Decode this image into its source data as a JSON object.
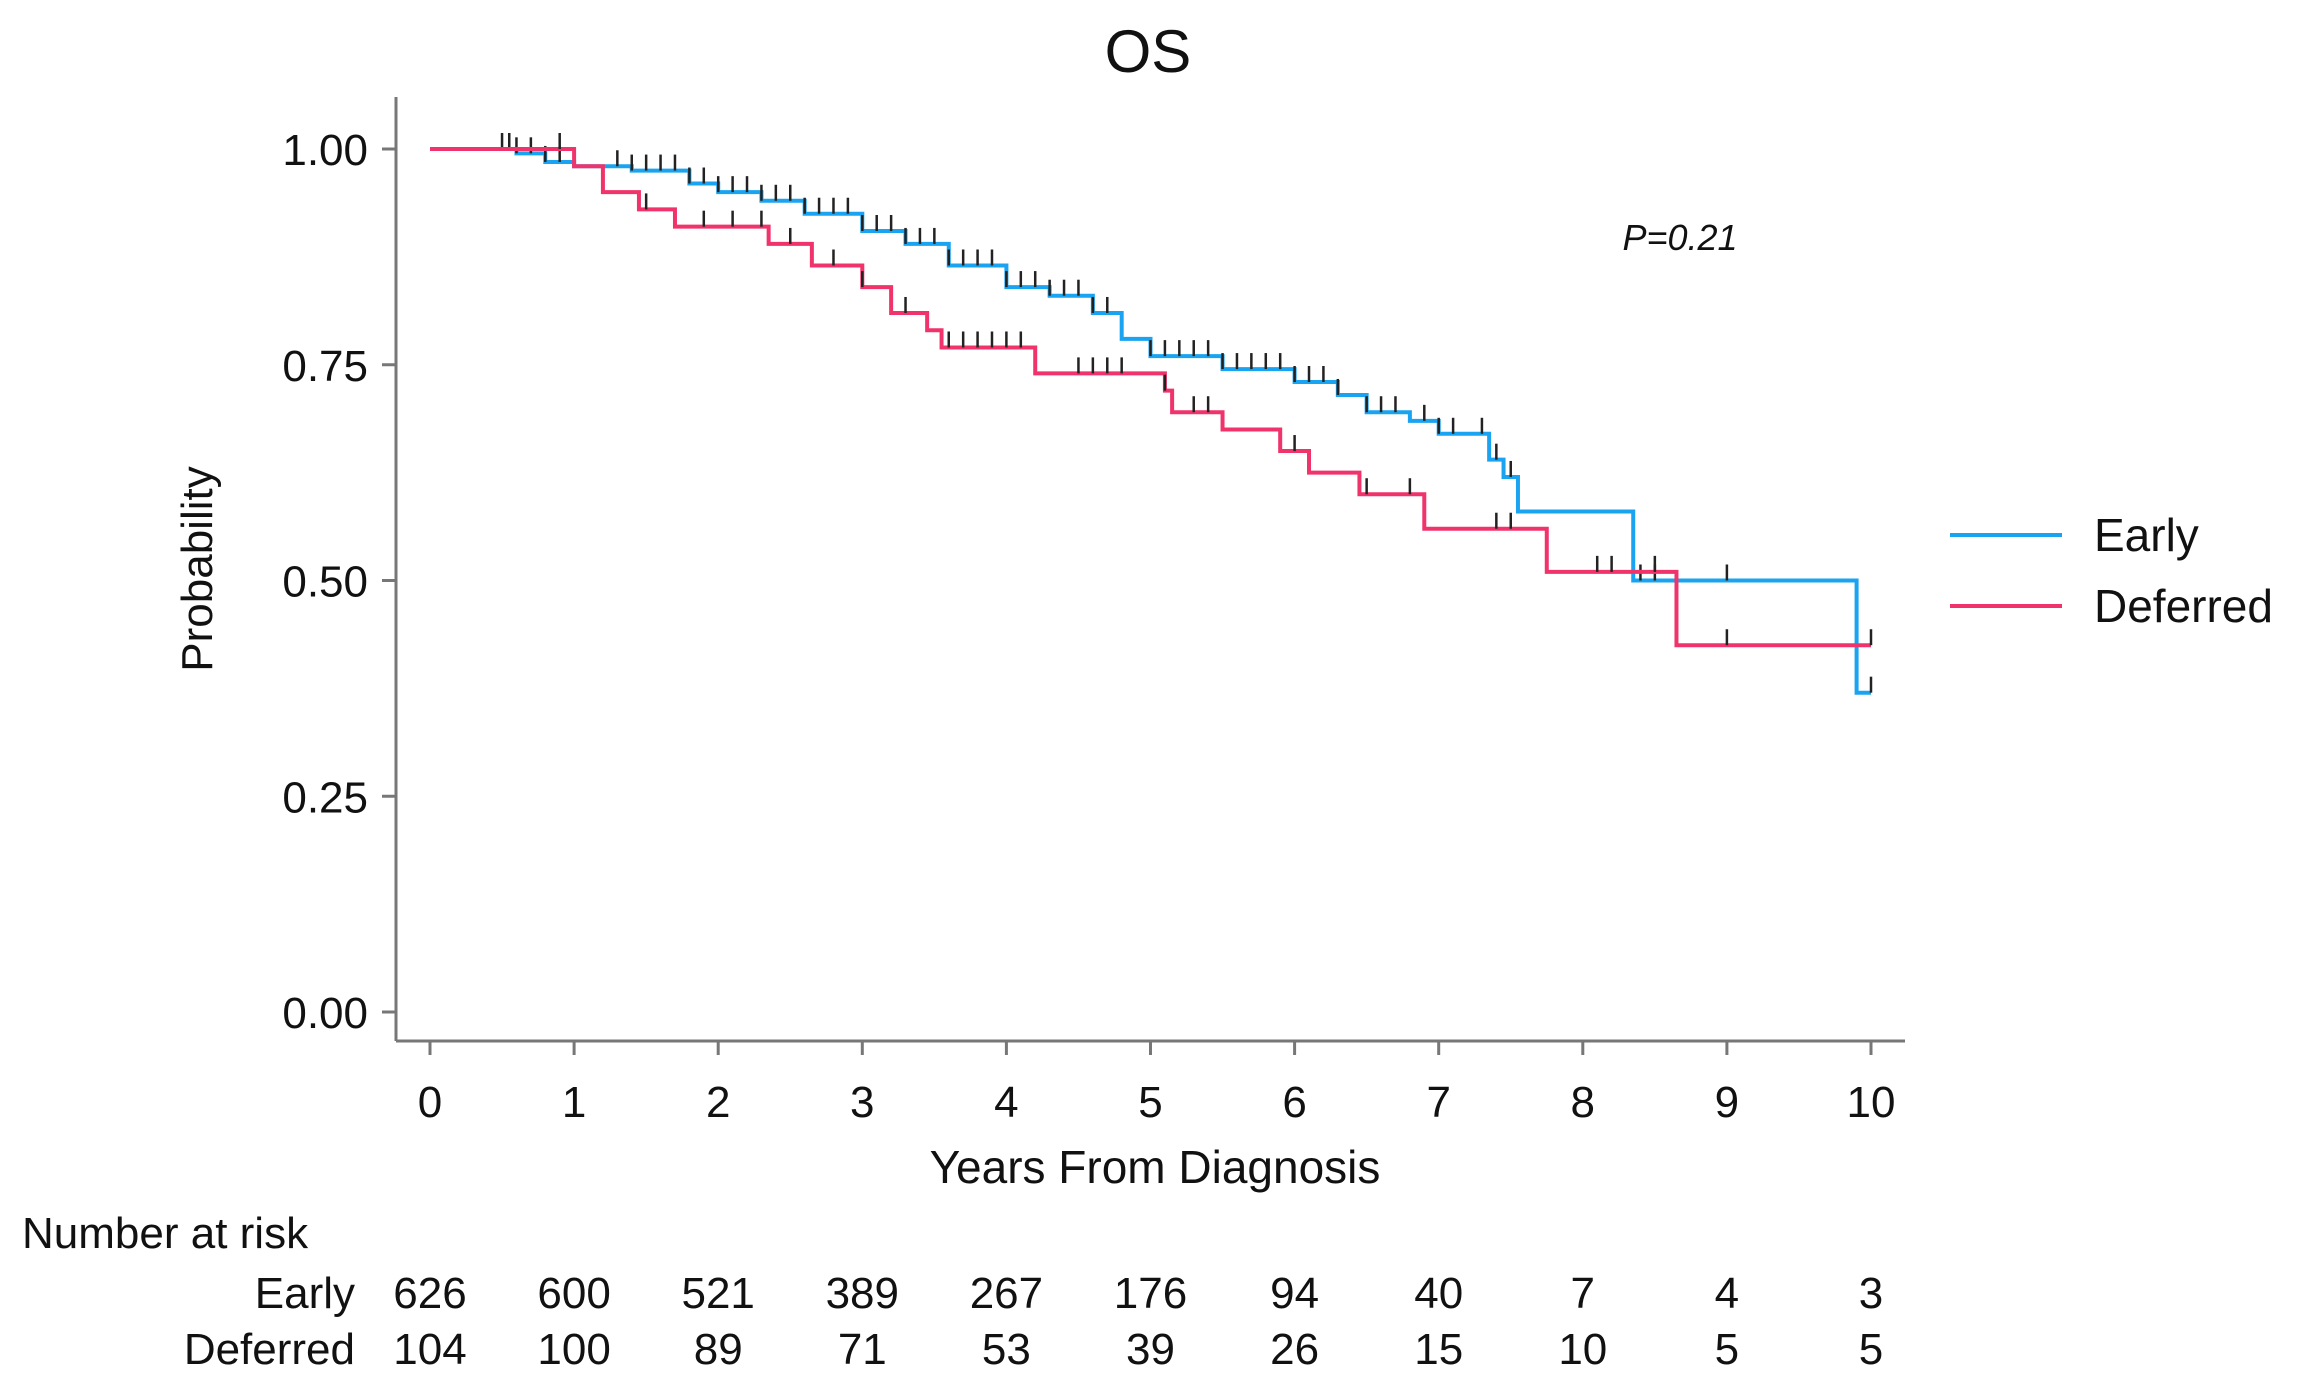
{
  "chart_data": {
    "type": "line",
    "subtype": "kaplan-meier step",
    "title": "OS",
    "xlabel": "Years From Diagnosis",
    "ylabel": "Probability",
    "xlim": [
      0,
      10
    ],
    "ylim": [
      0,
      1
    ],
    "xticks": [
      "0",
      "1",
      "2",
      "3",
      "4",
      "5",
      "6",
      "7",
      "8",
      "9",
      "10"
    ],
    "yticks": [
      "0.00",
      "0.25",
      "0.50",
      "0.75",
      "1.00"
    ],
    "annotation": "P=0.21",
    "legend": {
      "placement": "right",
      "entries": [
        "Early",
        "Deferred"
      ]
    },
    "series": [
      {
        "name": "Early",
        "color": "#1aa3f0",
        "points": [
          [
            0,
            1.0
          ],
          [
            0.6,
            0.995
          ],
          [
            0.8,
            0.985
          ],
          [
            1.0,
            0.98
          ],
          [
            1.4,
            0.975
          ],
          [
            1.8,
            0.96
          ],
          [
            2.0,
            0.95
          ],
          [
            2.3,
            0.94
          ],
          [
            2.6,
            0.925
          ],
          [
            3.0,
            0.905
          ],
          [
            3.3,
            0.89
          ],
          [
            3.6,
            0.865
          ],
          [
            4.0,
            0.84
          ],
          [
            4.3,
            0.83
          ],
          [
            4.6,
            0.81
          ],
          [
            4.8,
            0.78
          ],
          [
            5.0,
            0.76
          ],
          [
            5.5,
            0.745
          ],
          [
            6.0,
            0.73
          ],
          [
            6.3,
            0.715
          ],
          [
            6.5,
            0.695
          ],
          [
            6.8,
            0.685
          ],
          [
            7.0,
            0.67
          ],
          [
            7.2,
            0.67
          ],
          [
            7.35,
            0.64
          ],
          [
            7.45,
            0.62
          ],
          [
            7.55,
            0.58
          ],
          [
            8.35,
            0.5
          ],
          [
            9.9,
            0.37
          ],
          [
            10.0,
            0.37
          ]
        ],
        "censor_x": [
          0.5,
          0.55,
          0.6,
          0.7,
          0.8,
          0.9,
          1.3,
          1.4,
          1.5,
          1.6,
          1.7,
          1.8,
          1.9,
          2.0,
          2.1,
          2.2,
          2.3,
          2.4,
          2.5,
          2.6,
          2.7,
          2.8,
          2.9,
          3.0,
          3.1,
          3.2,
          3.3,
          3.4,
          3.5,
          3.6,
          3.7,
          3.8,
          3.9,
          4.0,
          4.1,
          4.2,
          4.3,
          4.4,
          4.5,
          4.6,
          4.7,
          5.0,
          5.1,
          5.2,
          5.3,
          5.4,
          5.5,
          5.6,
          5.7,
          5.8,
          5.9,
          6.0,
          6.1,
          6.2,
          6.3,
          6.5,
          6.6,
          6.7,
          6.9,
          7.0,
          7.1,
          7.3,
          7.4,
          7.5,
          8.4,
          8.5,
          9.0,
          10.0
        ]
      },
      {
        "name": "Deferred",
        "color": "#f0336b",
        "points": [
          [
            0,
            1.0
          ],
          [
            1.0,
            0.98
          ],
          [
            1.2,
            0.95
          ],
          [
            1.45,
            0.93
          ],
          [
            1.7,
            0.91
          ],
          [
            2.35,
            0.89
          ],
          [
            2.65,
            0.865
          ],
          [
            3.0,
            0.84
          ],
          [
            3.2,
            0.81
          ],
          [
            3.45,
            0.79
          ],
          [
            3.55,
            0.77
          ],
          [
            4.2,
            0.74
          ],
          [
            5.1,
            0.72
          ],
          [
            5.15,
            0.695
          ],
          [
            5.5,
            0.675
          ],
          [
            5.9,
            0.65
          ],
          [
            6.1,
            0.625
          ],
          [
            6.45,
            0.6
          ],
          [
            6.9,
            0.56
          ],
          [
            7.75,
            0.51
          ],
          [
            8.65,
            0.425
          ],
          [
            10.0,
            0.425
          ]
        ],
        "censor_x": [
          0.9,
          1.5,
          1.9,
          2.1,
          2.3,
          2.5,
          2.8,
          3.0,
          3.3,
          3.6,
          3.7,
          3.8,
          3.9,
          4.0,
          4.1,
          4.5,
          4.6,
          4.7,
          4.8,
          5.1,
          5.3,
          5.4,
          6.0,
          6.5,
          6.8,
          7.4,
          7.5,
          8.1,
          8.2,
          8.5,
          9.0,
          10.0
        ]
      }
    ],
    "risk_table": {
      "title": "Number at risk",
      "rows": [
        {
          "label": "Early",
          "values": [
            "626",
            "600",
            "521",
            "389",
            "267",
            "176",
            "94",
            "40",
            "7",
            "4",
            "3"
          ]
        },
        {
          "label": "Deferred",
          "values": [
            "104",
            "100",
            "89",
            "71",
            "53",
            "39",
            "26",
            "15",
            "10",
            "5",
            "5"
          ]
        }
      ]
    }
  }
}
